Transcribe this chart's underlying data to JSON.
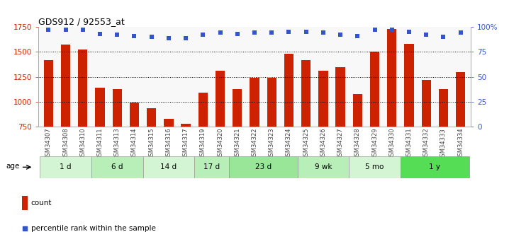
{
  "title": "GDS912 / 92553_at",
  "samples": [
    "GSM34307",
    "GSM34308",
    "GSM34310",
    "GSM34311",
    "GSM34313",
    "GSM34314",
    "GSM34315",
    "GSM34316",
    "GSM34317",
    "GSM34319",
    "GSM34320",
    "GSM34321",
    "GSM34322",
    "GSM34323",
    "GSM34324",
    "GSM34325",
    "GSM34326",
    "GSM34327",
    "GSM34328",
    "GSM34329",
    "GSM34330",
    "GSM34331",
    "GSM34332",
    "GSM34333",
    "GSM34334"
  ],
  "counts": [
    1420,
    1570,
    1520,
    1140,
    1130,
    990,
    940,
    830,
    780,
    1090,
    1310,
    1130,
    1240,
    1240,
    1480,
    1420,
    1310,
    1350,
    1080,
    1500,
    1730,
    1580,
    1220,
    1130,
    1300
  ],
  "percentile_vals": [
    97,
    97,
    97,
    93,
    92,
    91,
    90,
    89,
    89,
    92,
    94,
    93,
    94,
    94,
    95,
    95,
    94,
    92,
    91,
    97,
    97,
    95,
    92,
    90,
    94
  ],
  "ylim_left": [
    750,
    1750
  ],
  "ylim_right": [
    0,
    100
  ],
  "yticks_left": [
    750,
    1000,
    1250,
    1500,
    1750
  ],
  "yticks_right": [
    0,
    25,
    50,
    75,
    100
  ],
  "ytick_labels_right": [
    "0",
    "25",
    "50",
    "75",
    "100%"
  ],
  "groups": [
    {
      "label": "1 d",
      "indices": [
        0,
        1,
        2
      ],
      "color": "#d4f5d4"
    },
    {
      "label": "6 d",
      "indices": [
        3,
        4,
        5
      ],
      "color": "#b8eeb8"
    },
    {
      "label": "14 d",
      "indices": [
        6,
        7,
        8
      ],
      "color": "#d4f5d4"
    },
    {
      "label": "17 d",
      "indices": [
        9,
        10
      ],
      "color": "#b8eeb8"
    },
    {
      "label": "23 d",
      "indices": [
        11,
        12,
        13,
        14
      ],
      "color": "#99e699"
    },
    {
      "label": "9 wk",
      "indices": [
        15,
        16,
        17
      ],
      "color": "#b8eeb8"
    },
    {
      "label": "5 mo",
      "indices": [
        18,
        19,
        20
      ],
      "color": "#d4f5d4"
    },
    {
      "label": "1 y",
      "indices": [
        21,
        22,
        23,
        24
      ],
      "color": "#55dd55"
    }
  ],
  "bar_color": "#cc2200",
  "dot_color": "#3355cc",
  "plot_bg": "#f8f8f8",
  "age_label": "age",
  "legend_count": "count",
  "legend_pct": "percentile rank within the sample"
}
